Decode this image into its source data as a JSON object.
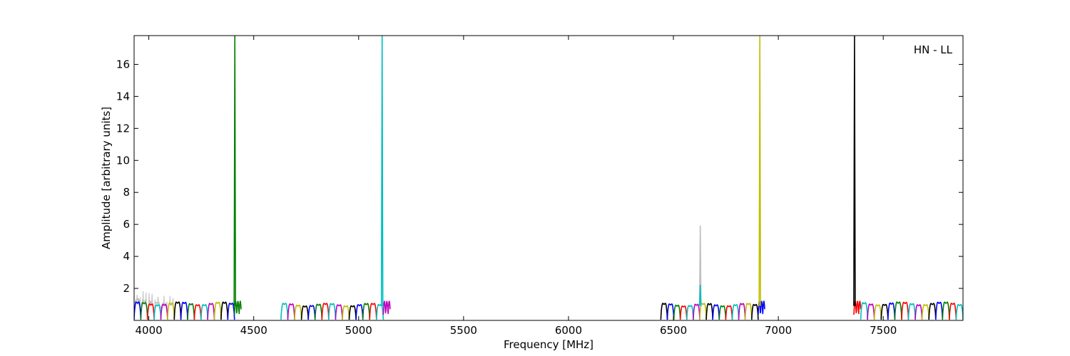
{
  "chart_data": {
    "type": "line",
    "annotation": "HN - LL",
    "xlabel": "Frequency [MHz]",
    "ylabel": "Amplitude [arbitrary units]",
    "xlim": [
      3930,
      7880
    ],
    "ylim": [
      0,
      17.8
    ],
    "xticks": [
      4000,
      4500,
      5000,
      5500,
      6000,
      6500,
      7000,
      7500
    ],
    "yticks": [
      2,
      4,
      6,
      8,
      10,
      12,
      14,
      16
    ],
    "grid": false,
    "colors": [
      "#0000ff",
      "#008000",
      "#ff0000",
      "#00bfbf",
      "#bf00bf",
      "#bfbf00",
      "#000000"
    ],
    "background_trace_color": "#bfbfbf",
    "segments": [
      {
        "start": 3930,
        "end": 4440,
        "n_channels": 16,
        "peak": 1.4,
        "noisy_background": true,
        "edge": "right"
      },
      {
        "start": 4630,
        "end": 5150,
        "n_channels": 16,
        "peak": 1.3,
        "noisy_background": false,
        "edge": "right"
      },
      {
        "start": 6440,
        "end": 6935,
        "n_channels": 16,
        "peak": 1.3,
        "noisy_background": false,
        "edge": "right"
      },
      {
        "start": 7360,
        "end": 7880,
        "n_channels": 16,
        "peak": 1.4,
        "noisy_background": false,
        "edge": "left"
      }
    ],
    "spikes": [
      {
        "x": 4410,
        "y": 17.8,
        "color": "#008000"
      },
      {
        "x": 5112,
        "y": 17.8,
        "color": "#00bfbf"
      },
      {
        "x": 6628,
        "y": 5.9,
        "color": "#bfbfbf"
      },
      {
        "x": 6628,
        "y": 2.2,
        "color": "#00bfbf"
      },
      {
        "x": 6912,
        "y": 17.8,
        "color": "#bfbf00"
      },
      {
        "x": 7363,
        "y": 17.8,
        "color": "#000000"
      }
    ]
  }
}
